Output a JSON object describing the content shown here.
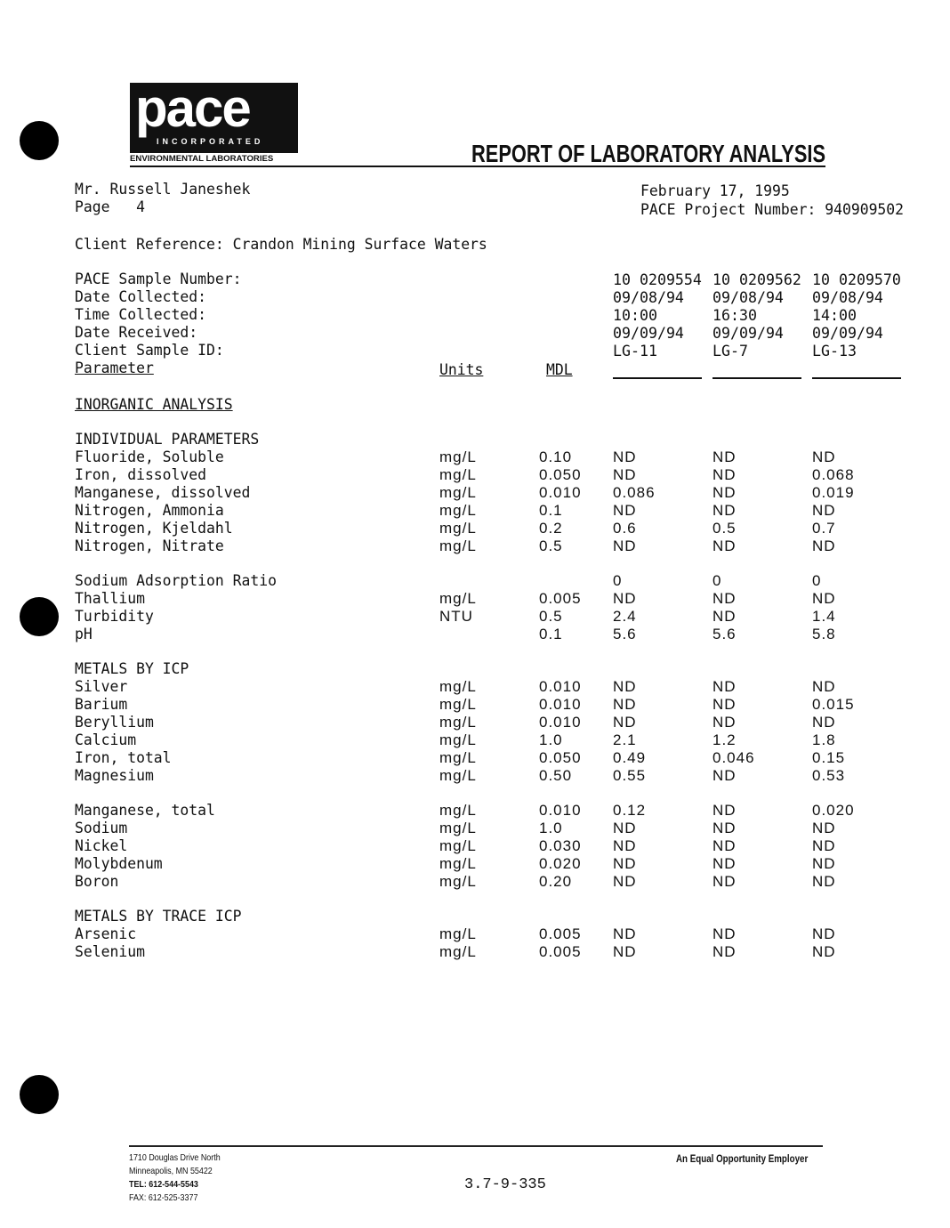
{
  "letterhead": {
    "logo_text": "pace",
    "logo_sub": "INCORPORATED",
    "division": "ENVIRONMENTAL LABORATORIES",
    "title": "REPORT OF LABORATORY ANALYSIS"
  },
  "recipient": "Mr. Russell Janeshek",
  "page": "Page   4",
  "date": "February 17, 1995",
  "project": "PACE Project Number: 940909502",
  "client_reference": "Client Reference: Crandon Mining Surface Waters",
  "sample_header": {
    "labels": [
      "PACE Sample Number:",
      "Date Collected:",
      "Time Collected:",
      "Date Received:",
      "Client Sample ID:"
    ],
    "samples": [
      {
        "number": "10 0209554",
        "collected": "09/08/94",
        "time": "10:00",
        "received": "09/09/94",
        "id": "LG-11"
      },
      {
        "number": "10 0209562",
        "collected": "09/08/94",
        "time": "16:30",
        "received": "09/09/94",
        "id": "LG-7"
      },
      {
        "number": "10 0209570",
        "collected": "09/08/94",
        "time": "14:00",
        "received": "09/09/94",
        "id": "LG-13"
      }
    ]
  },
  "columns": {
    "parameter": "Parameter",
    "units": "Units",
    "mdl": "MDL"
  },
  "rows": [
    {
      "section": "INORGANIC ANALYSIS",
      "underline": true
    },
    {
      "blank": true
    },
    {
      "section": "INDIVIDUAL PARAMETERS"
    },
    {
      "p": "Fluoride, Soluble",
      "u": "mg/L",
      "m": "0.10",
      "v": [
        "ND",
        "ND",
        "ND"
      ]
    },
    {
      "p": "Iron, dissolved",
      "u": "mg/L",
      "m": "0.050",
      "v": [
        "ND",
        "ND",
        "0.068"
      ]
    },
    {
      "p": "Manganese, dissolved",
      "u": "mg/L",
      "m": "0.010",
      "v": [
        "0.086",
        "ND",
        "0.019"
      ]
    },
    {
      "p": "Nitrogen, Ammonia",
      "u": "mg/L",
      "m": "0.1",
      "v": [
        "ND",
        "ND",
        "ND"
      ]
    },
    {
      "p": "Nitrogen, Kjeldahl",
      "u": "mg/L",
      "m": "0.2",
      "v": [
        "0.6",
        "0.5",
        "0.7"
      ]
    },
    {
      "p": "Nitrogen, Nitrate",
      "u": "mg/L",
      "m": "0.5",
      "v": [
        "ND",
        "ND",
        "ND"
      ]
    },
    {
      "blank": true
    },
    {
      "p": "Sodium Adsorption Ratio",
      "u": "",
      "m": "",
      "v": [
        "0",
        "0",
        "0"
      ]
    },
    {
      "p": "Thallium",
      "u": "mg/L",
      "m": "0.005",
      "v": [
        "ND",
        "ND",
        "ND"
      ]
    },
    {
      "p": "Turbidity",
      "u": "NTU",
      "m": "0.5",
      "v": [
        "2.4",
        "ND",
        "1.4"
      ]
    },
    {
      "p": "pH",
      "u": "",
      "m": "0.1",
      "v": [
        "5.6",
        "5.6",
        "5.8"
      ]
    },
    {
      "blank": true
    },
    {
      "section": "METALS BY ICP"
    },
    {
      "p": "Silver",
      "u": "mg/L",
      "m": "0.010",
      "v": [
        "ND",
        "ND",
        "ND"
      ]
    },
    {
      "p": "Barium",
      "u": "mg/L",
      "m": "0.010",
      "v": [
        "ND",
        "ND",
        "0.015"
      ]
    },
    {
      "p": "Beryllium",
      "u": "mg/L",
      "m": "0.010",
      "v": [
        "ND",
        "ND",
        "ND"
      ]
    },
    {
      "p": "Calcium",
      "u": "mg/L",
      "m": "1.0",
      "v": [
        "2.1",
        "1.2",
        "1.8"
      ]
    },
    {
      "p": "Iron, total",
      "u": "mg/L",
      "m": "0.050",
      "v": [
        "0.49",
        "0.046",
        "0.15"
      ]
    },
    {
      "p": "Magnesium",
      "u": "mg/L",
      "m": "0.50",
      "v": [
        "0.55",
        "ND",
        "0.53"
      ]
    },
    {
      "blank": true
    },
    {
      "p": "Manganese, total",
      "u": "mg/L",
      "m": "0.010",
      "v": [
        "0.12",
        "ND",
        "0.020"
      ]
    },
    {
      "p": "Sodium",
      "u": "mg/L",
      "m": "1.0",
      "v": [
        "ND",
        "ND",
        "ND"
      ]
    },
    {
      "p": "Nickel",
      "u": "mg/L",
      "m": "0.030",
      "v": [
        "ND",
        "ND",
        "ND"
      ]
    },
    {
      "p": "Molybdenum",
      "u": "mg/L",
      "m": "0.020",
      "v": [
        "ND",
        "ND",
        "ND"
      ]
    },
    {
      "p": "Boron",
      "u": "mg/L",
      "m": "0.20",
      "v": [
        "ND",
        "ND",
        "ND"
      ]
    },
    {
      "blank": true
    },
    {
      "section": "METALS BY TRACE ICP"
    },
    {
      "p": "Arsenic",
      "u": "mg/L",
      "m": "0.005",
      "v": [
        "ND",
        "ND",
        "ND"
      ]
    },
    {
      "p": "Selenium",
      "u": "mg/L",
      "m": "0.005",
      "v": [
        "ND",
        "ND",
        "ND"
      ]
    }
  ],
  "footer": {
    "address1": "1710 Douglas Drive North",
    "address2": "Minneapolis, MN 55422",
    "tel": "TEL: 612-544-5543",
    "fax": "FAX: 612-525-3377",
    "doc_number": "3.7-9-335",
    "eoe": "An Equal Opportunity Employer"
  }
}
